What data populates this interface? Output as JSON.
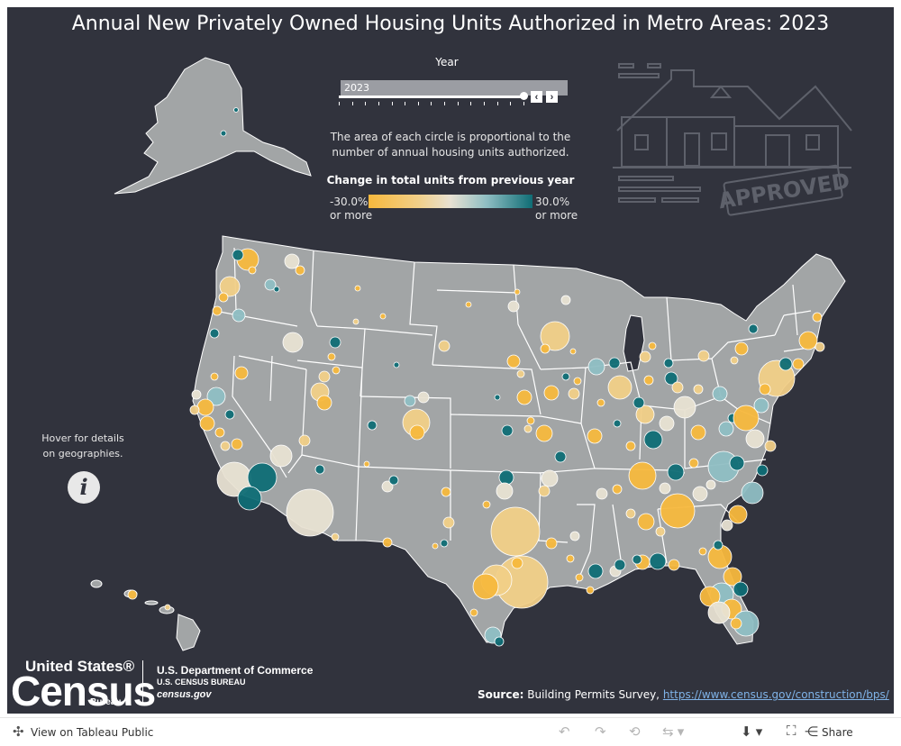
{
  "title": "Annual New Privately Owned Housing Units Authorized in Metro Areas: 2023",
  "year_filter": {
    "label": "Year",
    "selected": "2023",
    "prev_label": "‹",
    "next_label": "›"
  },
  "note": [
    "The area of each circle is proportional to the",
    "number of annual housing units authorized."
  ],
  "legend": {
    "title": "Change in total units from previous year",
    "min_label": [
      "-30.0%",
      "or more"
    ],
    "max_label": [
      "30.0%",
      "or more"
    ],
    "min_color": "#f7b83d",
    "mid_color": "#e8e1d2",
    "max_color": "#0f6d75"
  },
  "hover_note": [
    "Hover for details",
    "on geographies."
  ],
  "info_icon": "info-icon",
  "decoration": {
    "stamp_text": "APPROVED",
    "icon": "house-icon"
  },
  "branding": {
    "us": "United States®",
    "census": "Census",
    "bureau": "Bureau",
    "dept": "U.S. Department of Commerce",
    "bureau_name": "U.S. CENSUS BUREAU",
    "site": "census.gov"
  },
  "source": {
    "label": "Source:",
    "text": "Building Permits Survey,",
    "link": "https://www.census.gov/construction/bps/"
  },
  "toolbar": {
    "view_label": "View on Tableau Public",
    "share_label": "Share",
    "icons": [
      "tableau-icon",
      "undo-icon",
      "redo-icon",
      "revert-icon",
      "refresh-icon",
      "download-icon",
      "fullscreen-icon",
      "share-icon"
    ]
  },
  "colors": {
    "background": "#31333d",
    "land": "#a2a5a6",
    "border": "#ffffff"
  }
}
